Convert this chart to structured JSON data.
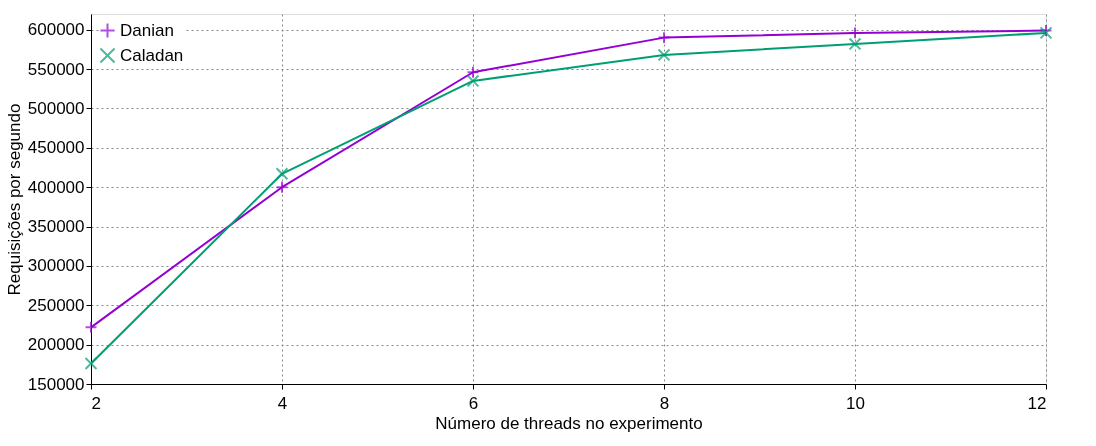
{
  "chart_data": {
    "type": "line",
    "xlabel": "Número de threads no experimento",
    "ylabel": "Requisições por segundo",
    "x": [
      2,
      4,
      6,
      8,
      10,
      12
    ],
    "series": [
      {
        "name": "Danian",
        "color": "#9400d3",
        "marker": "cross",
        "values": [
          222000,
          400000,
          546000,
          590000,
          596000,
          599000
        ]
      },
      {
        "name": "Caladan",
        "color": "#009e73",
        "marker": "cross",
        "values": [
          176000,
          417000,
          535000,
          568000,
          582000,
          596000
        ]
      }
    ],
    "xlim": [
      2,
      12
    ],
    "xticks": [
      2,
      4,
      6,
      8,
      10,
      12
    ],
    "ylim": [
      150000,
      620000
    ],
    "yticks": [
      150000,
      200000,
      250000,
      300000,
      350000,
      400000,
      450000,
      500000,
      550000,
      600000
    ],
    "grid": true,
    "legend": "top left",
    "line_style": "solid"
  }
}
